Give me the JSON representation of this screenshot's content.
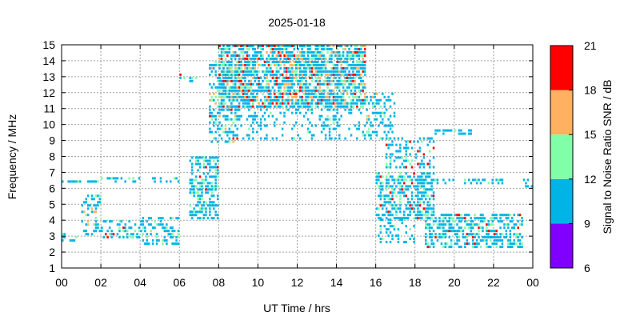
{
  "chart_data": {
    "type": "heatmap",
    "title": "2025-01-18",
    "xlabel": "UT Time / hrs",
    "ylabel": "Frequency / MHz",
    "colorbar_label": "Signal to Noise Ratio SNR / dB",
    "xlim": [
      0,
      24
    ],
    "ylim": [
      1,
      15
    ],
    "xticks": [
      "00",
      "02",
      "04",
      "06",
      "08",
      "10",
      "12",
      "14",
      "16",
      "18",
      "20",
      "22",
      "00"
    ],
    "yticks": [
      "1",
      "2",
      "3",
      "4",
      "5",
      "6",
      "7",
      "8",
      "9",
      "10",
      "11",
      "12",
      "13",
      "14",
      "15"
    ],
    "grid": true,
    "colorbar": {
      "ticks": [
        "6",
        "9",
        "12",
        "15",
        "18",
        "21"
      ],
      "bands": [
        {
          "range": [
            6,
            9
          ],
          "color": "#7f00ff"
        },
        {
          "range": [
            9,
            12
          ],
          "color": "#00b4e6"
        },
        {
          "range": [
            12,
            15
          ],
          "color": "#80ffa8"
        },
        {
          "range": [
            15,
            18
          ],
          "color": "#ffb060"
        },
        {
          "range": [
            18,
            21
          ],
          "color": "#ff0000"
        }
      ]
    },
    "point_color_by_snr": {
      "9-12": "#00b4e6",
      "12-15": "#80ffa8",
      "15-18": "#ffb060",
      "18-21": "#ff0000"
    },
    "observations": [
      {
        "t0": 0.0,
        "t1": 1.9,
        "f0": 6.3,
        "f1": 6.5,
        "density": 0.55,
        "snr_mix": [
          0.85,
          0.1,
          0.0,
          0.05
        ]
      },
      {
        "t0": 0.0,
        "t1": 1.0,
        "f0": 2.6,
        "f1": 3.2,
        "density": 0.35,
        "snr_mix": [
          0.9,
          0.1,
          0.0,
          0.0
        ]
      },
      {
        "t0": 1.0,
        "t1": 2.0,
        "f0": 3.0,
        "f1": 5.5,
        "density": 0.35,
        "snr_mix": [
          0.75,
          0.15,
          0.05,
          0.05
        ]
      },
      {
        "t0": 2.0,
        "t1": 4.0,
        "f0": 2.8,
        "f1": 4.0,
        "density": 0.4,
        "snr_mix": [
          0.75,
          0.2,
          0.0,
          0.05
        ]
      },
      {
        "t0": 2.0,
        "t1": 6.0,
        "f0": 6.3,
        "f1": 6.6,
        "density": 0.35,
        "snr_mix": [
          0.9,
          0.1,
          0.0,
          0.0
        ]
      },
      {
        "t0": 4.0,
        "t1": 6.0,
        "f0": 2.4,
        "f1": 4.2,
        "density": 0.35,
        "snr_mix": [
          0.85,
          0.15,
          0.0,
          0.0
        ]
      },
      {
        "t0": 6.0,
        "t1": 7.0,
        "f0": 12.6,
        "f1": 13.1,
        "density": 0.25,
        "snr_mix": [
          0.4,
          0.3,
          0.0,
          0.3
        ]
      },
      {
        "t0": 6.5,
        "t1": 8.0,
        "f0": 4.0,
        "f1": 8.0,
        "density": 0.55,
        "snr_mix": [
          0.75,
          0.2,
          0.0,
          0.05
        ]
      },
      {
        "t0": 7.5,
        "t1": 9.0,
        "f0": 8.8,
        "f1": 14.0,
        "density": 0.5,
        "snr_mix": [
          0.65,
          0.2,
          0.1,
          0.05
        ]
      },
      {
        "t0": 8.0,
        "t1": 15.5,
        "f0": 11.0,
        "f1": 15.0,
        "density": 0.75,
        "snr_mix": [
          0.6,
          0.2,
          0.12,
          0.08
        ]
      },
      {
        "t0": 8.5,
        "t1": 15.5,
        "f0": 9.0,
        "f1": 11.5,
        "density": 0.22,
        "snr_mix": [
          0.9,
          0.1,
          0.0,
          0.0
        ]
      },
      {
        "t0": 15.5,
        "t1": 17.0,
        "f0": 9.0,
        "f1": 12.0,
        "density": 0.4,
        "snr_mix": [
          0.8,
          0.15,
          0.05,
          0.0
        ]
      },
      {
        "t0": 16.5,
        "t1": 19.0,
        "f0": 7.2,
        "f1": 9.2,
        "density": 0.35,
        "snr_mix": [
          0.8,
          0.1,
          0.0,
          0.1
        ]
      },
      {
        "t0": 16.0,
        "t1": 19.0,
        "f0": 4.0,
        "f1": 7.0,
        "density": 0.55,
        "snr_mix": [
          0.75,
          0.2,
          0.0,
          0.05
        ]
      },
      {
        "t0": 16.0,
        "t1": 18.0,
        "f0": 2.5,
        "f1": 4.0,
        "density": 0.3,
        "snr_mix": [
          0.85,
          0.15,
          0.0,
          0.0
        ]
      },
      {
        "t0": 18.0,
        "t1": 22.5,
        "f0": 6.2,
        "f1": 6.6,
        "density": 0.4,
        "snr_mix": [
          0.85,
          0.15,
          0.0,
          0.0
        ]
      },
      {
        "t0": 18.5,
        "t1": 23.5,
        "f0": 2.2,
        "f1": 4.3,
        "density": 0.55,
        "snr_mix": [
          0.75,
          0.2,
          0.0,
          0.05
        ]
      },
      {
        "t0": 19.0,
        "t1": 21.0,
        "f0": 9.3,
        "f1": 9.6,
        "density": 0.4,
        "snr_mix": [
          0.9,
          0.1,
          0.0,
          0.0
        ]
      },
      {
        "t0": 23.5,
        "t1": 24.0,
        "f0": 6.0,
        "f1": 6.5,
        "density": 0.4,
        "snr_mix": [
          1.0,
          0.0,
          0.0,
          0.0
        ]
      }
    ]
  }
}
